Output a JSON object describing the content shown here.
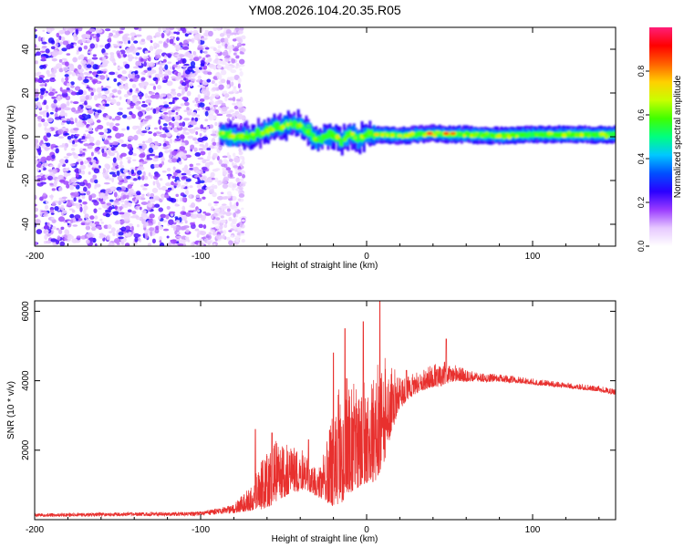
{
  "title": "YM08.2026.104.20.35.R05",
  "chart_data": [
    {
      "type": "heatmap",
      "name": "spectrogram",
      "xlabel": "Height of straight line (km)",
      "ylabel": "Frequency (Hz)",
      "xlim": [
        -200,
        150
      ],
      "ylim": [
        -50,
        50
      ],
      "xticks": [
        -200,
        -100,
        0,
        100
      ],
      "xtick_labels": [
        "-200",
        "-100",
        "0",
        "100"
      ],
      "yticks": [
        -40,
        -20,
        0,
        20,
        40
      ],
      "ytick_labels": [
        "-40",
        "-20",
        "0",
        "20",
        "40"
      ],
      "noise_region_km": [
        -200,
        -80
      ],
      "signal_band_start_km": -88,
      "signal_band_centerline": {
        "x": [
          -88,
          -80,
          -70,
          -60,
          -50,
          -45,
          -40,
          -35,
          -30,
          -25,
          -20,
          -15,
          -10,
          -5,
          0,
          10,
          20,
          30,
          40,
          50,
          60,
          80,
          100,
          120,
          150
        ],
        "y": [
          2,
          0,
          0,
          3,
          5,
          6,
          5,
          2,
          -1,
          0,
          1,
          -2,
          1,
          -1,
          1,
          1,
          0.5,
          1,
          1.5,
          1,
          1,
          0.5,
          1,
          1,
          1
        ]
      },
      "hot_spots": [
        {
          "x": 38,
          "y": 1.5,
          "level": 0.95
        },
        {
          "x": 48,
          "y": 1.5,
          "level": 0.9
        },
        {
          "x": 52,
          "y": 1.5,
          "level": 0.85
        },
        {
          "x": 6,
          "y": 1,
          "level": 0.75
        },
        {
          "x": 20,
          "y": 0.5,
          "level": 0.7
        },
        {
          "x": -35,
          "y": 5,
          "level": 0.55
        }
      ],
      "colorbar": {
        "label": "Normalized spectral amplitude",
        "range": [
          0,
          1
        ],
        "ticks": [
          0.0,
          0.2,
          0.4,
          0.6,
          0.8
        ],
        "tick_labels": [
          "0.0",
          "0.2",
          "0.4",
          "0.6",
          "0.8"
        ],
        "colors": [
          "#ffffff",
          "#e6c8ff",
          "#9a3cff",
          "#2a00ff",
          "#0050ff",
          "#00c8ff",
          "#00ff80",
          "#40ff00",
          "#c8ff00",
          "#ffd000",
          "#ff6000",
          "#ff0000",
          "#ff1e78"
        ]
      }
    },
    {
      "type": "line",
      "name": "snr",
      "xlabel": "Height of straight line (km)",
      "ylabel": "SNR (10 * v/v)",
      "xlim": [
        -200,
        150
      ],
      "ylim": [
        0,
        6300
      ],
      "xticks": [
        -200,
        -100,
        0,
        100
      ],
      "xtick_labels": [
        "-200",
        "-100",
        "0",
        "100"
      ],
      "yticks": [
        2000,
        4000,
        6000
      ],
      "ytick_labels": [
        "2000",
        "4000",
        "6000"
      ],
      "color": "#e8302e",
      "envelope": {
        "x": [
          -200,
          -100,
          -80,
          -70,
          -62,
          -55,
          -50,
          -45,
          -40,
          -35,
          -30,
          -25,
          -20,
          -15,
          -10,
          -5,
          0,
          5,
          10,
          15,
          20,
          25,
          30,
          35,
          40,
          45,
          50,
          55,
          60,
          70,
          80,
          90,
          100,
          110,
          120,
          130,
          140,
          150
        ],
        "base": [
          120,
          160,
          280,
          500,
          850,
          1100,
          1200,
          1250,
          1250,
          1200,
          950,
          1050,
          1350,
          1750,
          1950,
          1900,
          2100,
          2200,
          2700,
          3200,
          3500,
          3700,
          3850,
          3950,
          4050,
          4100,
          4150,
          4150,
          4100,
          4050,
          4050,
          4000,
          3950,
          3900,
          3850,
          3800,
          3750,
          3650
        ],
        "amplitude": [
          100,
          120,
          250,
          700,
          1600,
          1800,
          1600,
          1300,
          1200,
          1100,
          800,
          1500,
          2800,
          3600,
          3400,
          2800,
          3000,
          3200,
          3300,
          2000,
          900,
          700,
          600,
          600,
          650,
          700,
          600,
          450,
          350,
          250,
          220,
          200,
          180,
          170,
          160,
          160,
          160,
          160
        ]
      },
      "peaks": [
        {
          "x": -67,
          "y": 2600
        },
        {
          "x": -57,
          "y": 2500
        },
        {
          "x": -35,
          "y": 2300
        },
        {
          "x": -20,
          "y": 4800
        },
        {
          "x": -13,
          "y": 5500
        },
        {
          "x": -2,
          "y": 5700
        },
        {
          "x": 8,
          "y": 6300
        },
        {
          "x": 24,
          "y": 4300
        },
        {
          "x": 48,
          "y": 5200
        }
      ]
    }
  ]
}
